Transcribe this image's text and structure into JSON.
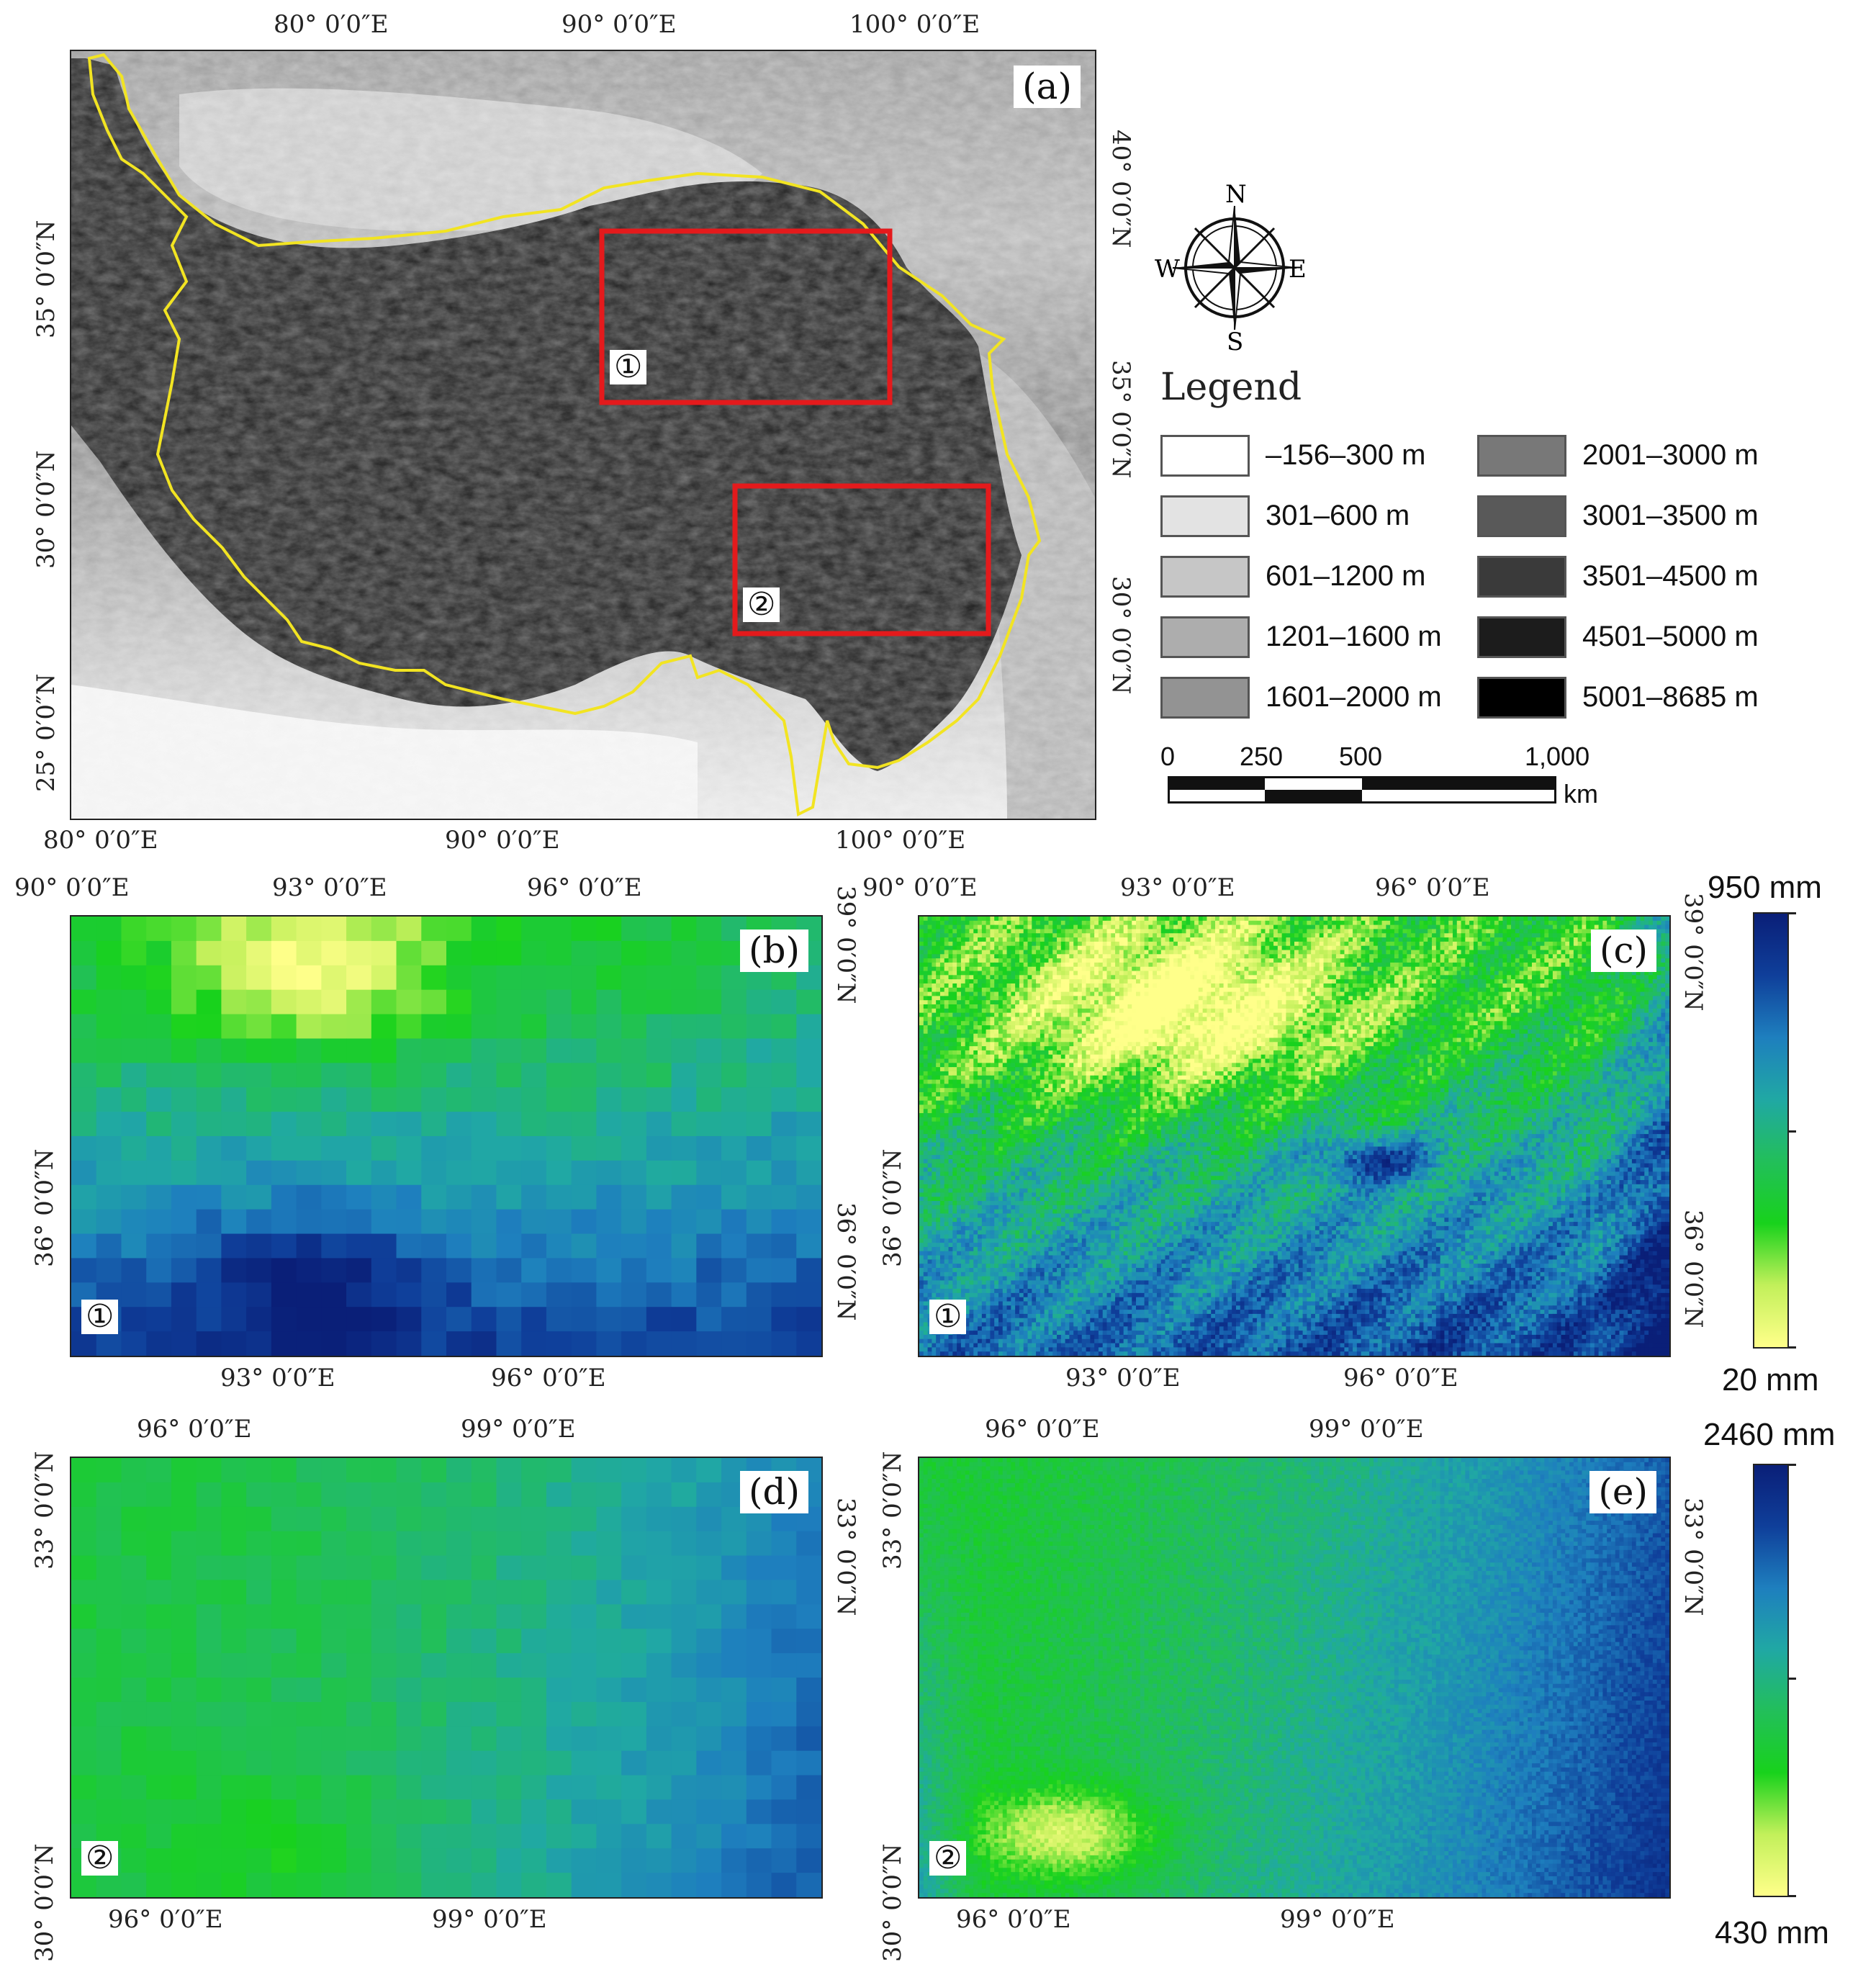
{
  "panels": {
    "a": {
      "label": "(a)"
    },
    "b": {
      "label": "(b)",
      "circle": "①"
    },
    "c": {
      "label": "(c)",
      "circle": "①"
    },
    "d": {
      "label": "(d)",
      "circle": "②"
    },
    "e": {
      "label": "(e)",
      "circle": "②"
    }
  },
  "region_markers": {
    "r1": "①",
    "r2": "②"
  },
  "coords_a": {
    "top": [
      "80° 0′0″E",
      "90° 0′0″E",
      "100° 0′0″E"
    ],
    "bottom": [
      "80° 0′0″E",
      "90° 0′0″E",
      "100° 0′0″E"
    ],
    "left": [
      "35° 0′0″N",
      "30° 0′0″N",
      "25° 0′0″N"
    ],
    "right": [
      "40° 0′0″N",
      "35° 0′0″N",
      "30° 0′0″N"
    ]
  },
  "coords_b": {
    "top": [
      "90° 0′0″E",
      "93° 0′0″E",
      "96° 0′0″E"
    ],
    "bottom": [
      "93° 0′0″E",
      "96° 0′0″E"
    ],
    "left": [
      "36° 0′0″N",
      "36° 0′0″N"
    ],
    "right": [
      "39° 0′0″N",
      "36° 0′0″N",
      "36° 0′0″N"
    ]
  },
  "coords_c": {
    "top": [
      "90° 0′0″E",
      "93° 0′0″E",
      "96° 0′0″E"
    ],
    "bottom": [
      "93° 0′0″E",
      "96° 0′0″E"
    ],
    "left": [
      "36° 0′0″N",
      "36° 0′0″N"
    ],
    "right": [
      "39° 0′0″N",
      "36° 0′0″N",
      "36° 0′0″N"
    ]
  },
  "coords_d": {
    "top": [
      "96° 0′0″E",
      "99° 0′0″E"
    ],
    "bottom": [
      "96° 0′0″E",
      "99° 0′0″E"
    ],
    "left": [
      "33° 0′0″N",
      "30° 0′0″N"
    ],
    "right": [
      "33° 0′0″N"
    ]
  },
  "coords_e": {
    "top": [
      "96° 0′0″E",
      "99° 0′0″E"
    ],
    "bottom": [
      "96° 0′0″E",
      "99° 0′0″E"
    ],
    "left": [
      "33° 0′0″N",
      "30° 0′0″N"
    ],
    "right": [
      "33° 0′0″N"
    ]
  },
  "compass": {
    "n": "N",
    "s": "S",
    "e": "E",
    "w": "W"
  },
  "legend": {
    "title": "Legend",
    "items": [
      {
        "label": "–156–300 m",
        "color": "#ffffff"
      },
      {
        "label": "301–600 m",
        "color": "#e3e3e3"
      },
      {
        "label": "601–1200 m",
        "color": "#c6c6c6"
      },
      {
        "label": "1201–1600 m",
        "color": "#adadad"
      },
      {
        "label": "1601–2000 m",
        "color": "#939393"
      },
      {
        "label": "2001–3000 m",
        "color": "#787878"
      },
      {
        "label": "3001–3500 m",
        "color": "#595959"
      },
      {
        "label": "3501–4500 m",
        "color": "#3a3a3a"
      },
      {
        "label": "4501–5000 m",
        "color": "#1c1c1c"
      },
      {
        "label": "5001–8685 m",
        "color": "#000000"
      }
    ]
  },
  "scalebar": {
    "ticks": [
      "0",
      "250",
      "500",
      "1,000"
    ],
    "unit": "km"
  },
  "colorbar_top": {
    "max": "950 mm",
    "min": "20 mm"
  },
  "colorbar_bottom": {
    "max": "2460 mm",
    "min": "430 mm"
  },
  "colors": {
    "boundary": "#f2e422",
    "region_box": "#e41a1c",
    "precip_ramp": [
      "#ffff8a",
      "#c2f05a",
      "#18d21c",
      "#22bf5a",
      "#20a8a4",
      "#1e7fbe",
      "#0f3f9a",
      "#0a1f78"
    ]
  }
}
